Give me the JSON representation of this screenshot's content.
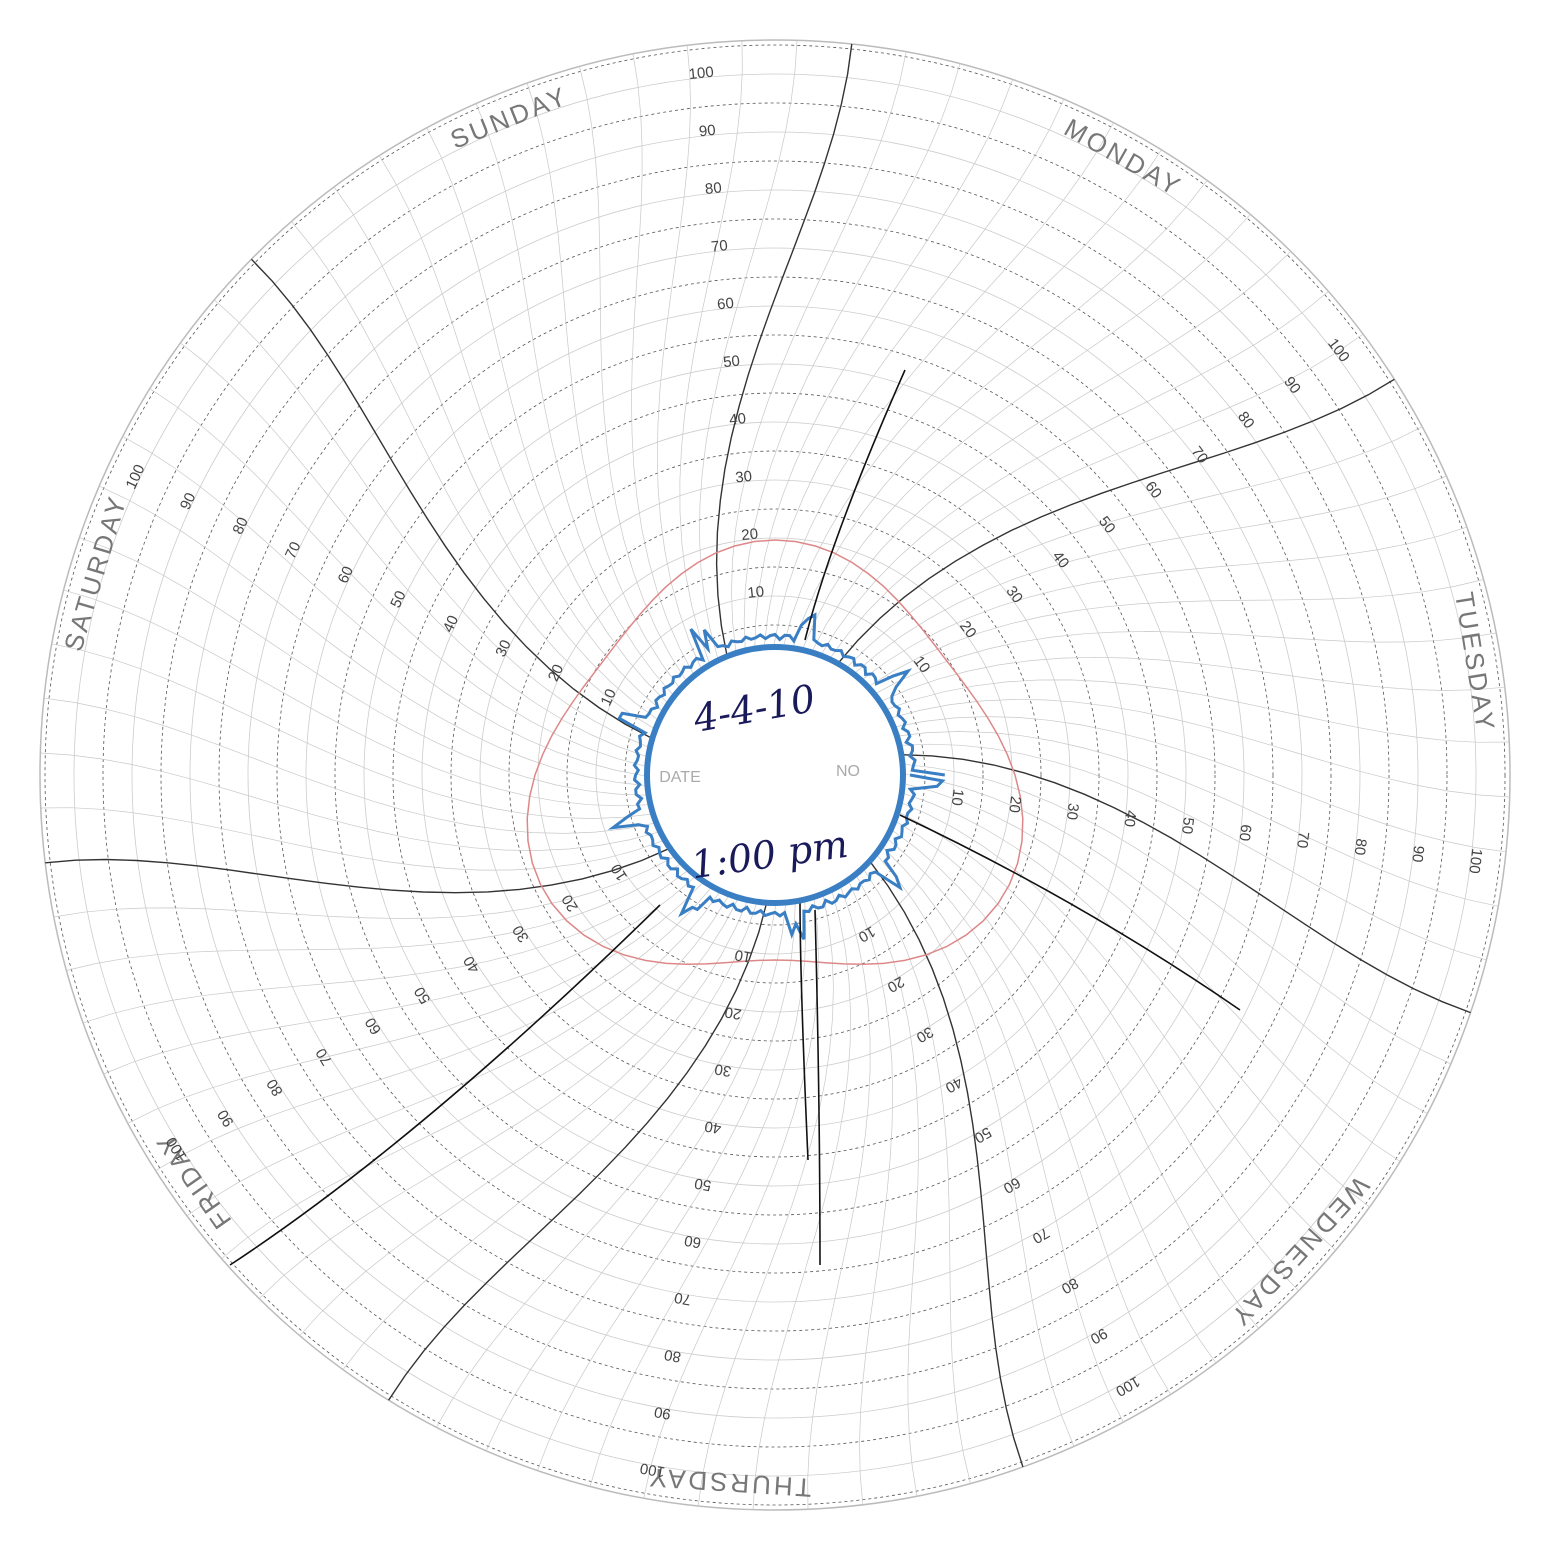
{
  "chart_paper": {
    "days": [
      "SUNDAY",
      "MONDAY",
      "TUESDAY",
      "WEDNESDAY",
      "THURSDAY",
      "FRIDAY",
      "SATURDAY"
    ],
    "scale": [
      10,
      20,
      30,
      40,
      50,
      60,
      70,
      80,
      90,
      100
    ],
    "center": {
      "left": "DATE",
      "right": "NO"
    },
    "handwriting": {
      "date": "4-4-10",
      "time": "1:00 pm"
    }
  }
}
